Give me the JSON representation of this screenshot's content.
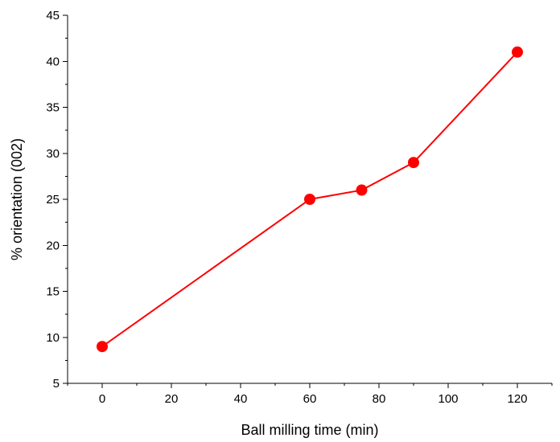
{
  "chart_data": {
    "type": "line",
    "title": "",
    "xlabel": "Ball milling time (min)",
    "ylabel": "% orientation (002)",
    "xlim": [
      -10,
      130
    ],
    "ylim": [
      5,
      45
    ],
    "x_ticks": [
      0,
      20,
      40,
      60,
      80,
      100,
      120
    ],
    "y_ticks": [
      5,
      10,
      15,
      20,
      25,
      30,
      35,
      40,
      45
    ],
    "grid": false,
    "legend": "none",
    "series": [
      {
        "color": "#ff0000",
        "marker": "circle",
        "x": [
          0,
          60,
          75,
          90,
          120
        ],
        "y": [
          9,
          25,
          26,
          29,
          41
        ]
      }
    ]
  }
}
